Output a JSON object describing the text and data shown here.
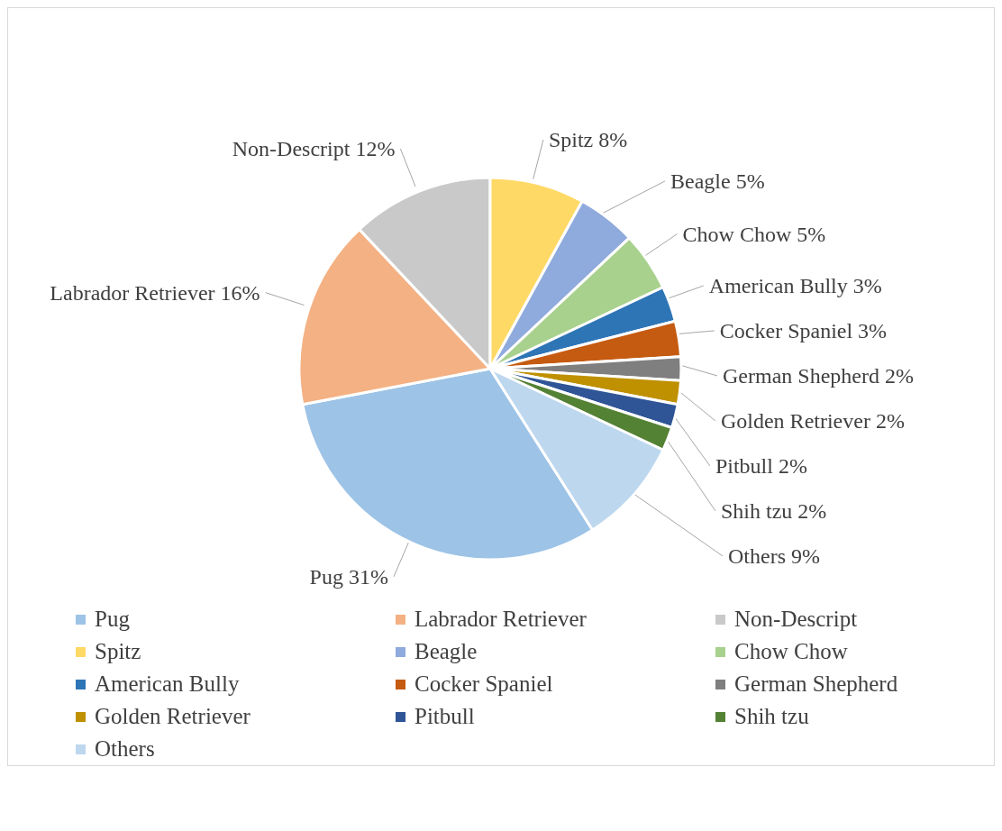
{
  "chart_data": {
    "type": "pie",
    "categories": [
      "Pug",
      "Labrador Retriever",
      "Non-Descript",
      "Spitz",
      "Beagle",
      "Chow Chow",
      "American Bully",
      "Cocker Spaniel",
      "German Shepherd",
      "Golden Retriever",
      "Pitbull",
      "Shih tzu",
      "Others"
    ],
    "values": [
      31,
      16,
      12,
      8,
      5,
      5,
      3,
      3,
      2,
      2,
      2,
      2,
      9
    ],
    "value_labels": [
      "31%",
      "16%",
      "12%",
      "8%",
      "5%",
      "5%",
      "3%",
      "3%",
      "2%",
      "2%",
      "2%",
      "2%",
      "9%"
    ],
    "colors": [
      "#9dc3e6",
      "#f4b183",
      "#c9c9c9",
      "#ffd966",
      "#8faadc",
      "#a9d18e",
      "#2e75b6",
      "#c55a11",
      "#7f7f7f",
      "#bf9000",
      "#2f5597",
      "#548235",
      "#bdd7ee"
    ],
    "legend": "bottom"
  }
}
